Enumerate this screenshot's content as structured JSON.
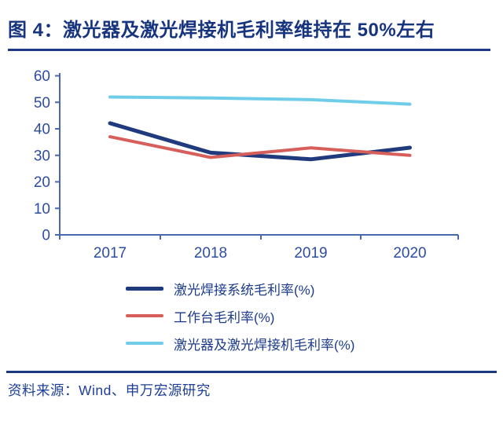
{
  "title": "图 4：激光器及激光焊接机毛利率维持在 50%左右",
  "source": "资料来源：Wind、申万宏源研究",
  "colors": {
    "title_text": "#17357f",
    "title_rule": "#1a3a85",
    "axis": "#4a68ac",
    "tick_label": "#2d4da1",
    "legend_text": "#1c3b8a",
    "footer_rule": "#1b3a7e",
    "source_text": "#1e3f99",
    "background": "#ffffff"
  },
  "chart_data": {
    "type": "line",
    "title": "激光器及激光焊接机毛利率维持在50%左右",
    "categories": [
      "2017",
      "2018",
      "2019",
      "2020"
    ],
    "series": [
      {
        "name": "激光焊接系统毛利率(%)",
        "color": "#1f3b7d",
        "stroke_width": 5,
        "values": [
          42.1,
          31.0,
          28.5,
          32.9
        ]
      },
      {
        "name": "工作台毛利率(%)",
        "color": "#d65f5c",
        "stroke_width": 4,
        "values": [
          37.0,
          29.2,
          32.8,
          30.0
        ]
      },
      {
        "name": "激光器及激光焊接机毛利率(%)",
        "color": "#6fcdea",
        "stroke_width": 4,
        "values": [
          52.0,
          51.6,
          51.0,
          49.3
        ]
      }
    ],
    "xlabel": "",
    "ylabel": "",
    "ylim": [
      0,
      60
    ],
    "y_ticks": [
      0,
      10,
      20,
      30,
      40,
      50,
      60
    ],
    "grid": false,
    "legend_position": "bottom"
  }
}
